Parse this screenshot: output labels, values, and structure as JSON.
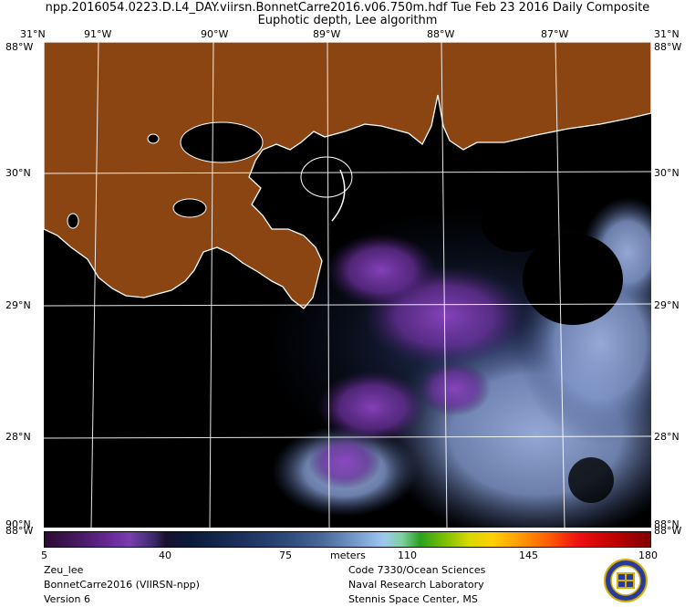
{
  "header": {
    "line1": "npp.2016054.0223.D.L4_DAY.viirsn.BonnetCarre2016.v06.750m.hdf    Tue Feb 23 2016 Daily Composite",
    "line2": "Euphotic depth, Lee algorithm"
  },
  "lon_labels": [
    "91°W",
    "90°W",
    "89°W",
    "88°W",
    "87°W"
  ],
  "lat_labels": [
    "30°N",
    "29°N",
    "28°N"
  ],
  "corner_labels": {
    "top_left_lat": "31°N",
    "top_left_lon": "88°W",
    "top_right_lat": "31°N",
    "top_right_lon": "88°W",
    "bottom_left_lat": "90°N",
    "bottom_left_lon": "88°W",
    "bottom_right_lat": "88°N",
    "bottom_right_lon": "88°W"
  },
  "colorbar": {
    "ticks": [
      "5",
      "40",
      "75",
      "110",
      "145",
      "180"
    ],
    "units": "meters"
  },
  "footer_left": [
    "Zeu_lee",
    "BonnetCarre2016 (VIIRSN-npp)",
    "Version 6"
  ],
  "footer_right": [
    "Code 7330/Ocean Sciences",
    "Naval Research Laboratory",
    "Stennis Space Center, MS"
  ],
  "colors": {
    "land": "#8b4513",
    "water_no_data": "#000000",
    "coastline": "#ffffff",
    "grid": "#ffffff",
    "low_depth": "#7b3fb0",
    "mid_depth": "#1a2f5a",
    "high_depth": "#8ea6d8"
  }
}
